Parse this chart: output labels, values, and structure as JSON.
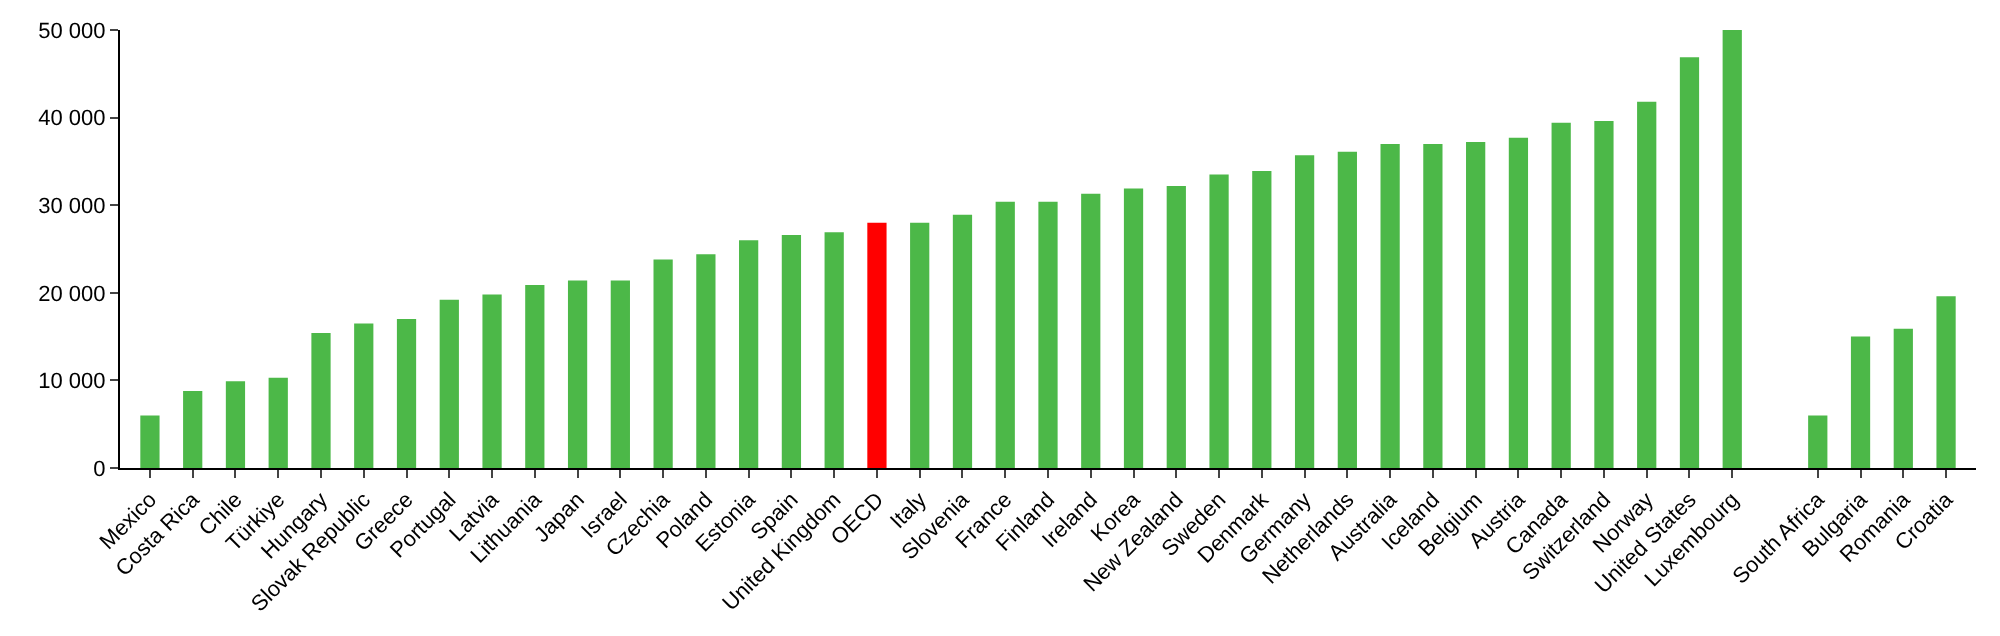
{
  "chart_data": {
    "type": "bar",
    "categories": [
      "Mexico",
      "Costa Rica",
      "Chile",
      "Türkiye",
      "Hungary",
      "Slovak Republic",
      "Greece",
      "Portugal",
      "Latvia",
      "Lithuania",
      "Japan",
      "Israel",
      "Czechia",
      "Poland",
      "Estonia",
      "Spain",
      "United Kingdom",
      "OECD",
      "Italy",
      "Slovenia",
      "France",
      "Finland",
      "Ireland",
      "Korea",
      "New Zealand",
      "Sweden",
      "Denmark",
      "Germany",
      "Netherlands",
      "Australia",
      "Iceland",
      "Belgium",
      "Austria",
      "Canada",
      "Switzerland",
      "Norway",
      "United States",
      "Luxembourg",
      null,
      "South Africa",
      "Bulgaria",
      "Romania",
      "Croatia"
    ],
    "values": [
      6000,
      8800,
      9900,
      10300,
      15400,
      16500,
      17000,
      19200,
      19800,
      20900,
      21400,
      21400,
      23800,
      24400,
      26000,
      26600,
      26900,
      28000,
      28000,
      28900,
      30400,
      30400,
      31300,
      31900,
      32200,
      33500,
      33900,
      35700,
      36100,
      37000,
      37000,
      37200,
      37700,
      39400,
      39600,
      41800,
      46900,
      50000,
      null,
      6000,
      15000,
      15900,
      19600
    ],
    "colors": [
      "#4cb848",
      "#4cb848",
      "#4cb848",
      "#4cb848",
      "#4cb848",
      "#4cb848",
      "#4cb848",
      "#4cb848",
      "#4cb848",
      "#4cb848",
      "#4cb848",
      "#4cb848",
      "#4cb848",
      "#4cb848",
      "#4cb848",
      "#4cb848",
      "#4cb848",
      "#ff0000",
      "#4cb848",
      "#4cb848",
      "#4cb848",
      "#4cb848",
      "#4cb848",
      "#4cb848",
      "#4cb848",
      "#4cb848",
      "#4cb848",
      "#4cb848",
      "#4cb848",
      "#4cb848",
      "#4cb848",
      "#4cb848",
      "#4cb848",
      "#4cb848",
      "#4cb848",
      "#4cb848",
      "#4cb848",
      "#4cb848",
      "#4cb848",
      "#4cb848",
      "#4cb848",
      "#4cb848",
      "#4cb848"
    ],
    "ylim": [
      0,
      50000
    ],
    "yticks": [
      0,
      {
        "value": 10000,
        "label": "10 000"
      },
      {
        "value": 20000,
        "label": "20 000"
      },
      {
        "value": 30000,
        "label": "30 000"
      },
      {
        "value": 40000,
        "label": "40 000"
      },
      {
        "value": 50000,
        "label": "50 000"
      }
    ],
    "grid": false
  }
}
